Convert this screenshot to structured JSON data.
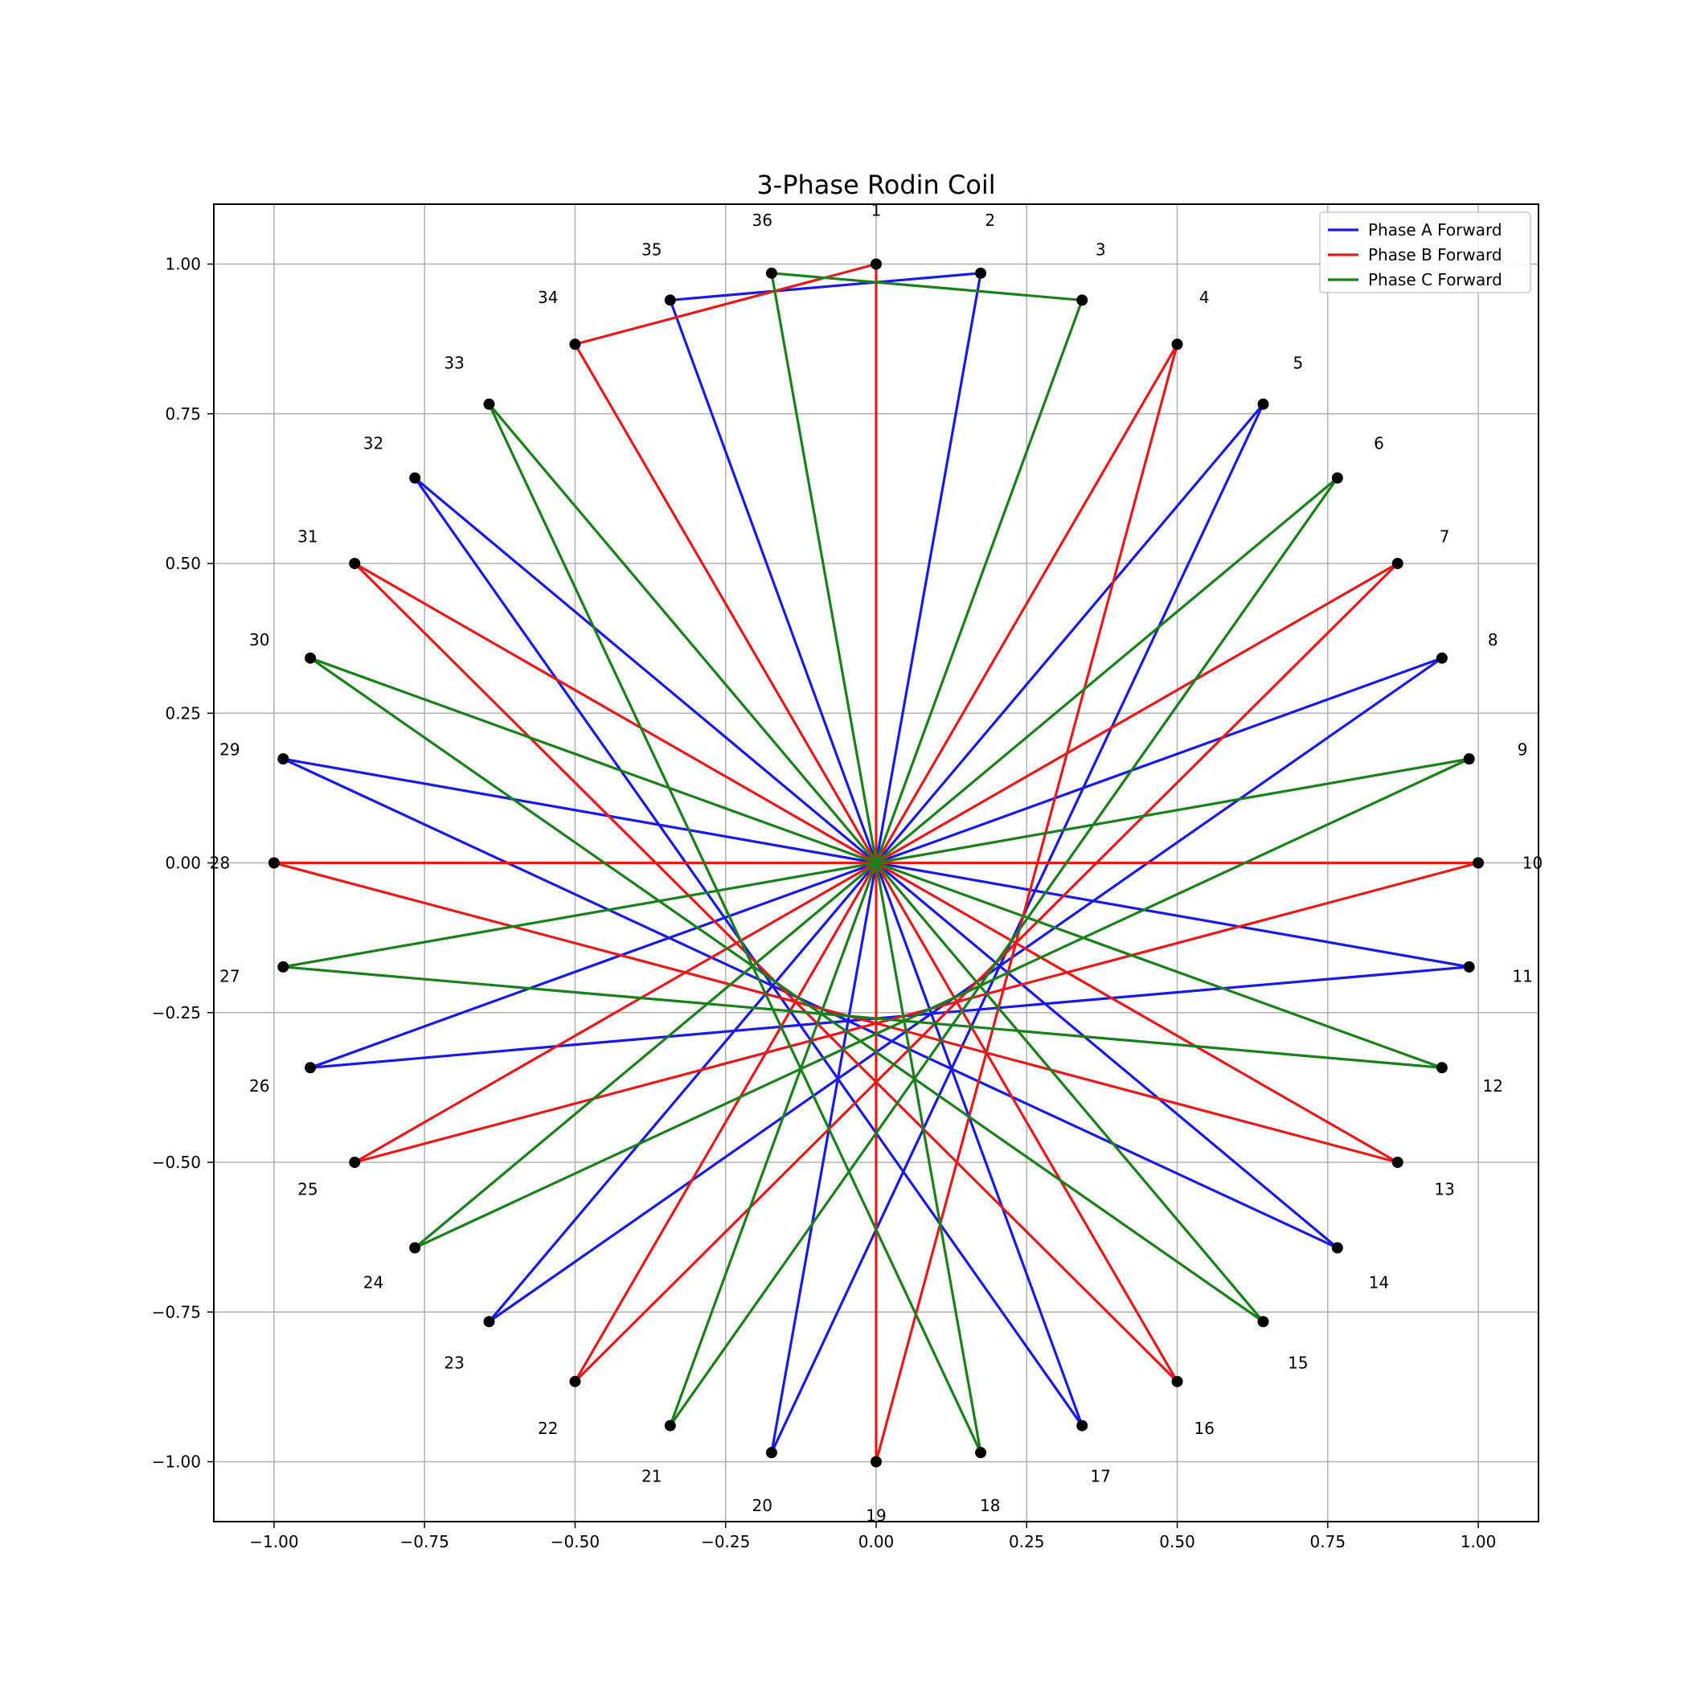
{
  "chart_data": {
    "type": "line",
    "title": "3-Phase Rodin Coil",
    "xlim": [
      -1.1,
      1.1
    ],
    "ylim": [
      -1.1,
      1.1
    ],
    "xticks": [
      -1.0,
      -0.75,
      -0.5,
      -0.25,
      0.0,
      0.25,
      0.5,
      0.75,
      1.0
    ],
    "yticks": [
      -1.0,
      -0.75,
      -0.5,
      -0.25,
      0.0,
      0.25,
      0.5,
      0.75,
      1.0
    ],
    "xtick_labels": [
      "−1.00",
      "−0.75",
      "−0.50",
      "−0.25",
      "0.00",
      "0.25",
      "0.50",
      "0.75",
      "1.00"
    ],
    "ytick_labels": [
      "−1.00",
      "−0.75",
      "−0.50",
      "−0.25",
      "0.00",
      "0.25",
      "0.50",
      "0.75",
      "1.00"
    ],
    "grid": true,
    "legend_position": "top-right",
    "points": {
      "count": 36,
      "radius": 1.0,
      "start_angle_deg": 90,
      "direction": "clockwise",
      "labels": [
        "1",
        "2",
        "3",
        "4",
        "5",
        "6",
        "7",
        "8",
        "9",
        "10",
        "11",
        "12",
        "13",
        "14",
        "15",
        "16",
        "17",
        "18",
        "19",
        "20",
        "21",
        "22",
        "23",
        "24",
        "25",
        "26",
        "27",
        "28",
        "29",
        "30",
        "31",
        "32",
        "33",
        "34",
        "35",
        "36"
      ],
      "marker_color": "#000000"
    },
    "series": [
      {
        "name": "Phase A Forward",
        "color": "#1a1ae6",
        "path": [
          2,
          20,
          5,
          23,
          8,
          26,
          11,
          29,
          14,
          32,
          17,
          35,
          2
        ]
      },
      {
        "name": "Phase B Forward",
        "color": "#e61a1a",
        "path": [
          1,
          19,
          4,
          22,
          7,
          25,
          10,
          28,
          13,
          31,
          16,
          34,
          1
        ]
      },
      {
        "name": "Phase C Forward",
        "color": "#1a801a",
        "path": [
          3,
          21,
          6,
          24,
          9,
          27,
          12,
          30,
          15,
          33,
          18,
          36,
          3
        ]
      }
    ]
  }
}
